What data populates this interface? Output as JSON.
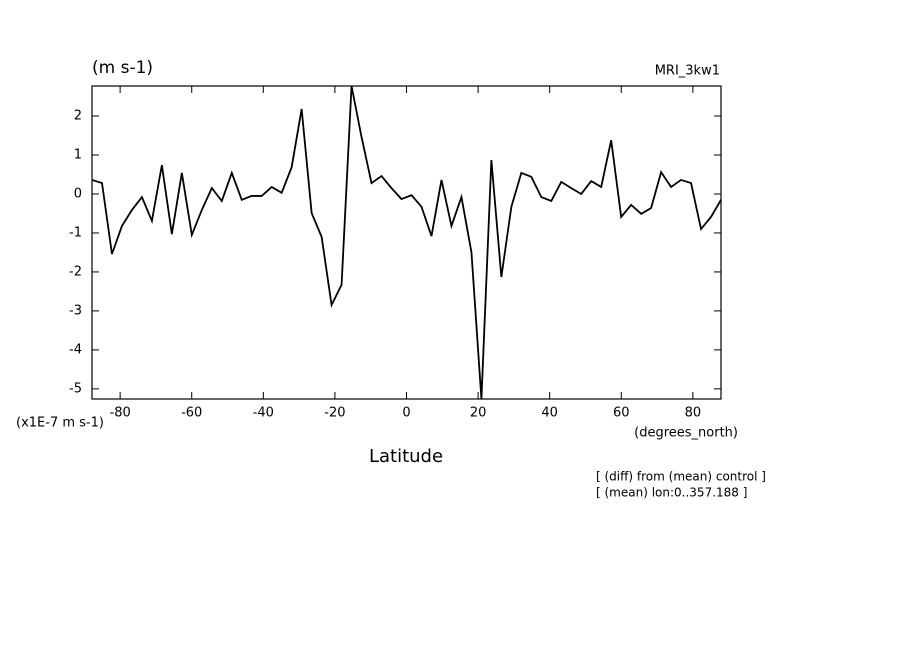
{
  "chart_data": {
    "type": "line",
    "title": "(m s-1)",
    "subtitle": "MRI_3kw1",
    "y_unit_label": "(x1E-7 m s-1)",
    "x_unit_label": "(degrees_north)",
    "x_label": "Latitude",
    "annotations": [
      "[ (diff) from (mean) control ]",
      "[ (mean) lon:0..357.188 ]"
    ],
    "x": [
      -87.86,
      -85.07,
      -82.28,
      -79.49,
      -76.7,
      -73.91,
      -71.13,
      -68.34,
      -65.55,
      -62.76,
      -59.97,
      -57.18,
      -54.39,
      -51.6,
      -48.81,
      -46.03,
      -43.24,
      -40.45,
      -37.66,
      -34.87,
      -32.08,
      -29.29,
      -26.5,
      -23.71,
      -20.93,
      -18.14,
      -15.35,
      -12.56,
      -9.77,
      -6.98,
      -4.19,
      -1.4,
      1.4,
      4.19,
      6.98,
      9.77,
      12.56,
      15.35,
      18.14,
      20.93,
      23.71,
      26.5,
      29.29,
      32.08,
      34.87,
      37.66,
      40.45,
      43.24,
      46.03,
      48.81,
      51.6,
      54.39,
      57.18,
      59.97,
      62.76,
      65.55,
      68.34,
      71.13,
      73.91,
      76.7,
      79.49,
      82.28,
      85.07,
      87.86
    ],
    "values": [
      0.36,
      0.28,
      -1.54,
      -0.82,
      -0.41,
      -0.08,
      -0.69,
      0.74,
      -1.03,
      0.54,
      -1.05,
      -0.41,
      0.15,
      -0.18,
      0.54,
      -0.15,
      -0.05,
      -0.05,
      0.18,
      0.03,
      0.69,
      2.18,
      -0.49,
      -1.1,
      -2.85,
      -2.33,
      2.77,
      1.46,
      0.28,
      0.46,
      0.15,
      -0.13,
      -0.03,
      -0.33,
      -1.08,
      0.36,
      -0.82,
      -0.08,
      -1.49,
      -5.26,
      0.87,
      -2.13,
      -0.33,
      0.54,
      0.44,
      -0.08,
      -0.18,
      0.31,
      0.15,
      0.0,
      0.33,
      0.18,
      1.38,
      -0.59,
      -0.28,
      -0.51,
      -0.36,
      0.56,
      0.18,
      0.36,
      0.28,
      -0.9,
      -0.59,
      -0.15
    ],
    "color": "#000000",
    "xlim": [
      -87.86,
      87.86
    ],
    "xticks": [
      -80,
      -60,
      -40,
      -20,
      0,
      20,
      40,
      60,
      80
    ],
    "ylim": [
      -5.26,
      2.77
    ],
    "yticks": [
      -5,
      -4,
      -3,
      -2,
      -1,
      0,
      1,
      2
    ],
    "grid": false
  }
}
